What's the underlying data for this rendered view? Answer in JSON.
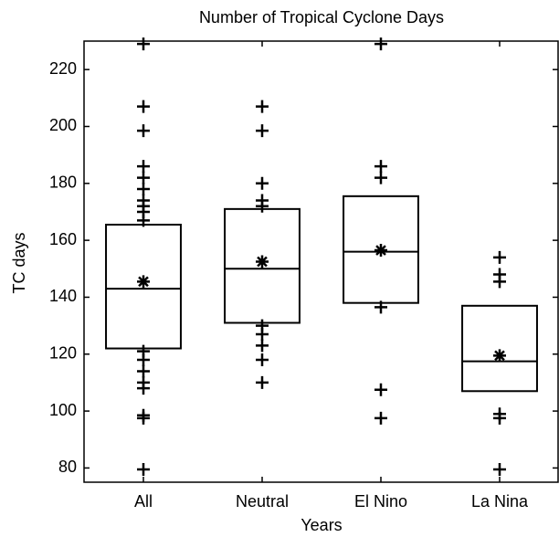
{
  "chart_data": {
    "type": "box",
    "title": "Number of Tropical Cyclone Days",
    "xlabel": "Years",
    "ylabel": "TC days",
    "categories": [
      "All",
      "Neutral",
      "El Nino",
      "La Nina"
    ],
    "boxes": [
      {
        "q1": 122,
        "median": 143,
        "q3": 165.5,
        "mean": 145.5,
        "points": [
          229,
          207,
          198.5,
          186,
          182,
          178,
          174,
          172,
          170,
          167,
          121,
          118,
          114,
          110,
          108,
          98.5,
          97.5,
          79.5
        ]
      },
      {
        "q1": 131,
        "median": 150,
        "q3": 171,
        "mean": 152.5,
        "points": [
          207,
          198.5,
          180,
          174,
          172,
          130,
          127,
          123,
          118,
          110
        ]
      },
      {
        "q1": 138,
        "median": 156,
        "q3": 175.5,
        "mean": 156.5,
        "points": [
          229,
          186,
          182,
          136.5,
          107.5,
          97.5
        ]
      },
      {
        "q1": 107,
        "median": 117.5,
        "q3": 137,
        "mean": 119.5,
        "points": [
          154,
          148,
          145.5,
          99,
          97.5,
          79.5
        ]
      }
    ],
    "color": "#000000",
    "ylim": [
      75,
      230
    ],
    "yticks": [
      80,
      100,
      120,
      140,
      160,
      180,
      200,
      220
    ],
    "grid": false
  }
}
